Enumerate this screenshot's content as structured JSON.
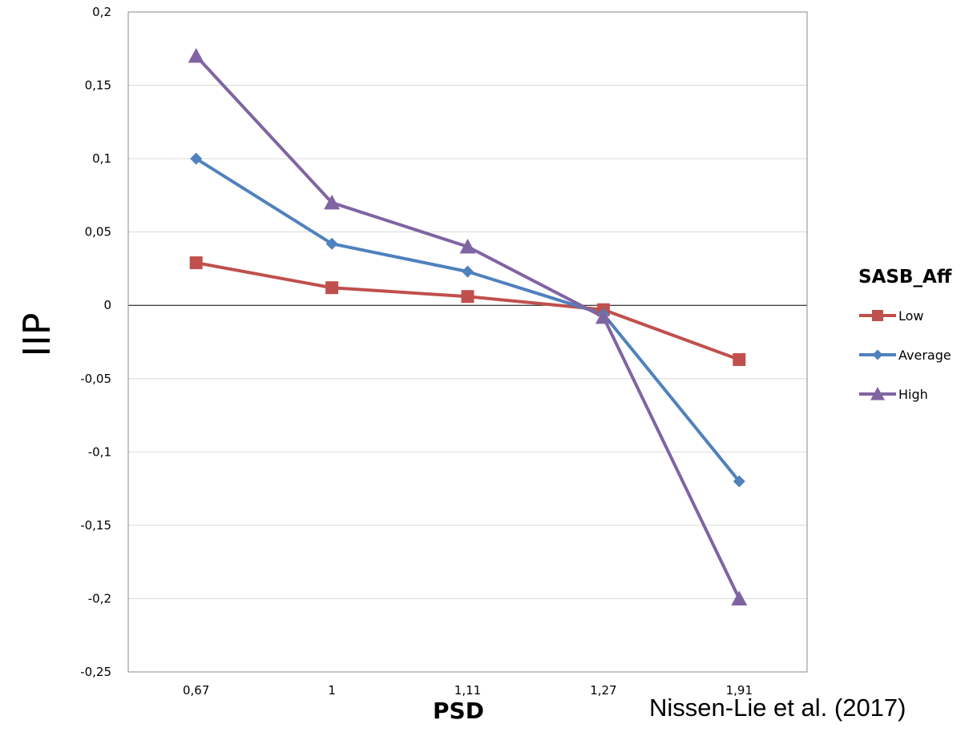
{
  "chart_data": {
    "type": "line",
    "categories": [
      "0,67",
      "1",
      "1,11",
      "1,27",
      "1,91"
    ],
    "xlabel": "PSD",
    "ylabel": "IIP",
    "ylim": [
      -0.25,
      0.2
    ],
    "yticks": [
      0.2,
      0.15,
      0.1,
      0.05,
      0,
      -0.05,
      -0.1,
      -0.15,
      -0.2,
      -0.25
    ],
    "ytick_labels": [
      "0,2",
      "0,15",
      "0,1",
      "0,05",
      "0",
      "-0,05",
      "-0,1",
      "-0,15",
      "-0,2",
      "-0,25"
    ],
    "grid": "horizontal",
    "legend": {
      "title": "SASB_Aff",
      "placement": "right"
    },
    "series": [
      {
        "name": "Low",
        "color": "#c0504d",
        "marker": "square",
        "values": [
          0.029,
          0.012,
          0.006,
          -0.003,
          -0.037
        ]
      },
      {
        "name": "Average",
        "color": "#4f81bd",
        "marker": "diamond",
        "values": [
          0.1,
          0.042,
          0.023,
          -0.006,
          -0.12
        ]
      },
      {
        "name": "High",
        "color": "#8064a2",
        "marker": "triangle",
        "values": [
          0.17,
          0.07,
          0.04,
          -0.008,
          -0.2
        ]
      }
    ]
  },
  "citation": "Nissen-Lie et al. (2017)"
}
